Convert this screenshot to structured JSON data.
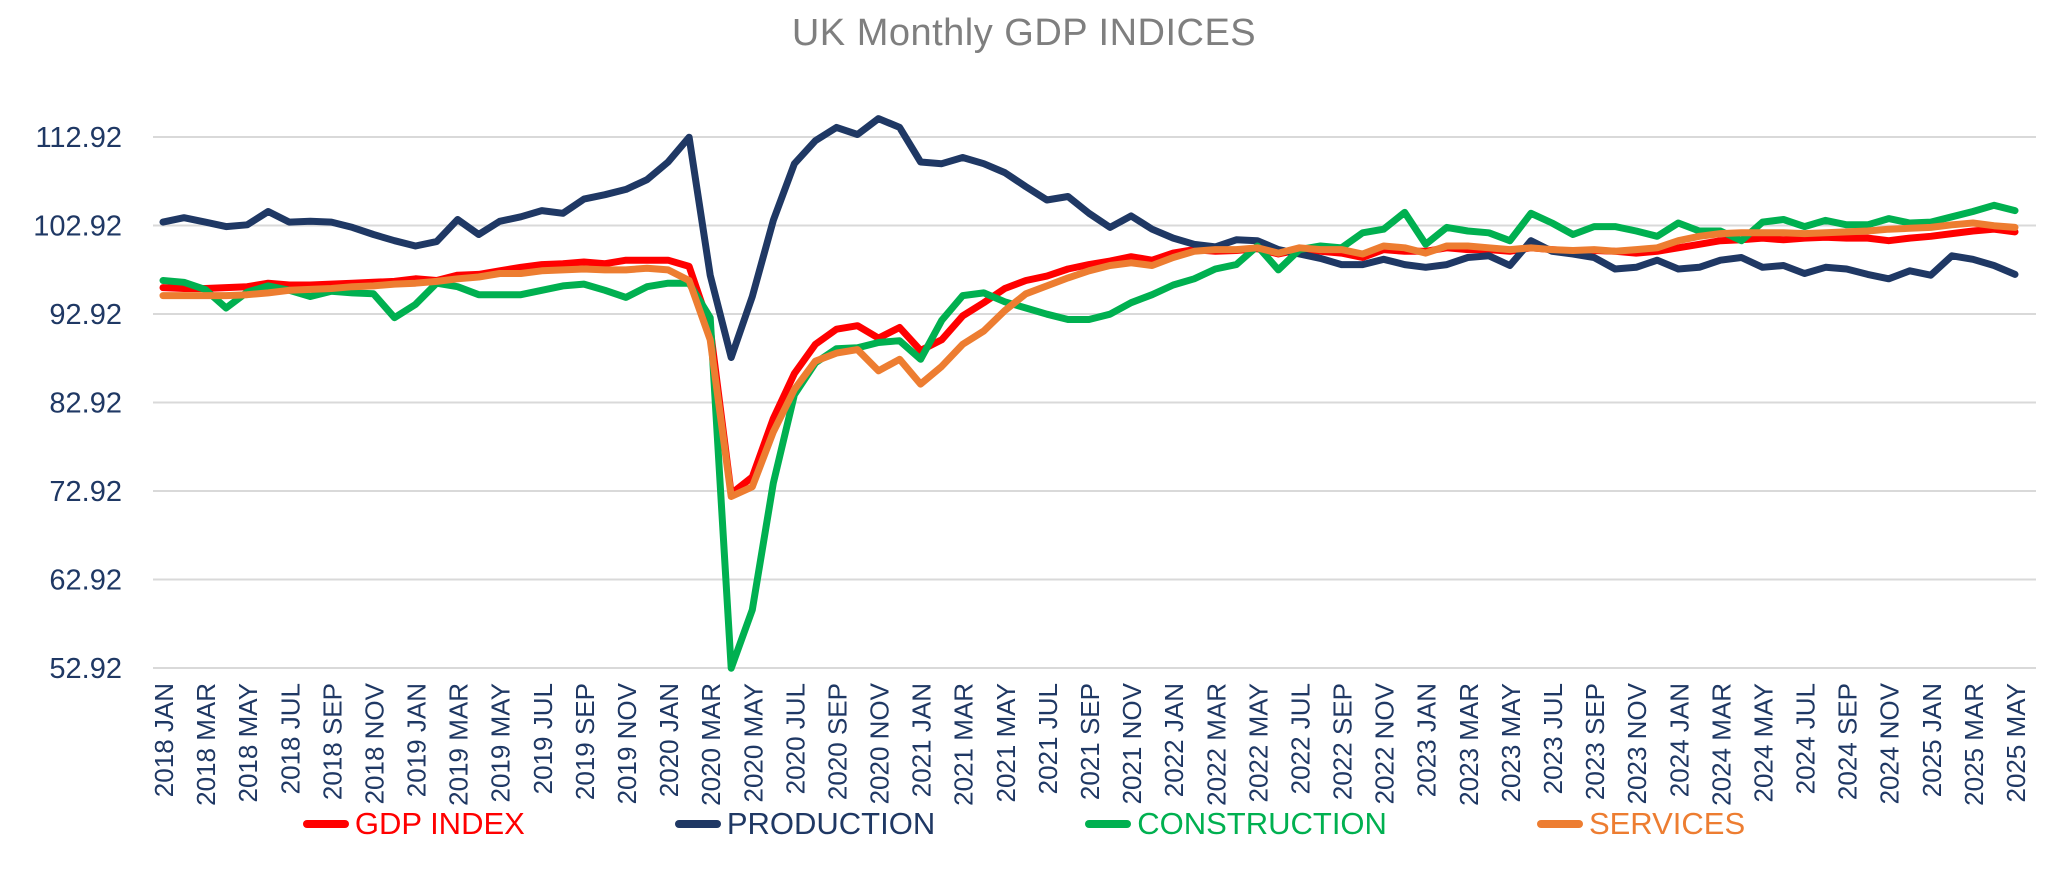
{
  "title": "UK Monthly GDP INDICES",
  "colors": {
    "title_text": "#7f7f7f",
    "axis_text": "#1f3864",
    "gridline": "#d9d9d9",
    "background": "#ffffff",
    "gdp_index": "#ff0000",
    "production": "#1f3864",
    "construction": "#00b050",
    "services": "#ed7d31"
  },
  "legend": {
    "position": "bottom",
    "items": [
      "GDP INDEX",
      "PRODUCTION",
      "CONSTRUCTION",
      "SERVICES"
    ]
  },
  "chart_data": {
    "type": "line",
    "title": "UK Monthly GDP INDICES",
    "xlabel": "",
    "ylabel": "",
    "ylim": [
      52.92,
      112.92
    ],
    "y_ticks": [
      112.92,
      102.92,
      92.92,
      82.92,
      72.92,
      62.92,
      52.92
    ],
    "grid": "horizontal",
    "legend_position": "bottom",
    "x_tick_step": 2,
    "x": [
      "2018 JAN",
      "2018 FEB",
      "2018 MAR",
      "2018 APR",
      "2018 MAY",
      "2018 JUN",
      "2018 JUL",
      "2018 AUG",
      "2018 SEP",
      "2018 OCT",
      "2018 NOV",
      "2018 DEC",
      "2019 JAN",
      "2019 FEB",
      "2019 MAR",
      "2019 APR",
      "2019 MAY",
      "2019 JUN",
      "2019 JUL",
      "2019 AUG",
      "2019 SEP",
      "2019 OCT",
      "2019 NOV",
      "2019 DEC",
      "2020 JAN",
      "2020 FEB",
      "2020 MAR",
      "2020 APR",
      "2020 MAY",
      "2020 JUN",
      "2020 JUL",
      "2020 AUG",
      "2020 SEP",
      "2020 OCT",
      "2020 NOV",
      "2020 DEC",
      "2021 JAN",
      "2021 FEB",
      "2021 MAR",
      "2021 APR",
      "2021 MAY",
      "2021 JUN",
      "2021 JUL",
      "2021 AUG",
      "2021 SEP",
      "2021 OCT",
      "2021 NOV",
      "2021 DEC",
      "2022 JAN",
      "2022 FEB",
      "2022 MAR",
      "2022 APR",
      "2022 MAY",
      "2022 JUN",
      "2022 JUL",
      "2022 AUG",
      "2022 SEP",
      "2022 OCT",
      "2022 NOV",
      "2022 DEC",
      "2023 JAN",
      "2023 FEB",
      "2023 MAR",
      "2023 APR",
      "2023 MAY",
      "2023 JUN",
      "2023 JUL",
      "2023 AUG",
      "2023 SEP",
      "2023 OCT",
      "2023 NOV",
      "2023 DEC",
      "2024 JAN",
      "2024 FEB",
      "2024 MAR",
      "2024 APR",
      "2024 MAY",
      "2024 JUN",
      "2024 JUL",
      "2024 AUG",
      "2024 SEP",
      "2024 OCT",
      "2024 NOV",
      "2024 DEC",
      "2025 JAN",
      "2025 FEB",
      "2025 MAR",
      "2025 APR",
      "2025 MAY"
    ],
    "series": [
      {
        "name": "GDP INDEX",
        "color": "#ff0000",
        "values": [
          95.9,
          95.8,
          95.8,
          95.9,
          96.0,
          96.4,
          96.2,
          96.2,
          96.3,
          96.4,
          96.5,
          96.6,
          96.9,
          96.7,
          97.3,
          97.4,
          97.8,
          98.2,
          98.5,
          98.6,
          98.8,
          98.6,
          99.0,
          99.0,
          99.0,
          98.3,
          91.3,
          72.6,
          74.5,
          81.1,
          86.2,
          89.5,
          91.2,
          91.6,
          90.2,
          91.4,
          88.8,
          90.0,
          92.7,
          94.2,
          95.8,
          96.7,
          97.2,
          98.0,
          98.5,
          98.9,
          99.4,
          99.0,
          99.8,
          100.2,
          100.0,
          100.1,
          100.3,
          99.7,
          100.2,
          100.0,
          99.8,
          99.3,
          100.2,
          100.0,
          100.0,
          100.4,
          100.2,
          100.2,
          100.0,
          100.4,
          100.2,
          100.0,
          100.1,
          100.0,
          99.8,
          100.0,
          100.4,
          100.8,
          101.2,
          101.3,
          101.5,
          101.3,
          101.5,
          101.6,
          101.5,
          101.5,
          101.2,
          101.5,
          101.7,
          102.0,
          102.3,
          102.5,
          102.2
        ]
      },
      {
        "name": "PRODUCTION",
        "color": "#1f3864",
        "values": [
          103.3,
          103.8,
          103.3,
          102.8,
          103.0,
          104.5,
          103.3,
          103.4,
          103.3,
          102.7,
          101.9,
          101.2,
          100.6,
          101.1,
          103.6,
          101.9,
          103.4,
          103.9,
          104.6,
          104.3,
          105.9,
          106.4,
          107.0,
          108.1,
          110.1,
          112.9,
          97.3,
          88.0,
          94.9,
          103.5,
          109.9,
          112.5,
          114.0,
          113.2,
          115.0,
          114.0,
          110.1,
          109.9,
          110.6,
          109.9,
          108.9,
          107.3,
          105.8,
          106.2,
          104.3,
          102.7,
          104.0,
          102.5,
          101.5,
          100.8,
          100.5,
          101.3,
          101.2,
          100.2,
          99.7,
          99.2,
          98.5,
          98.5,
          99.1,
          98.5,
          98.2,
          98.5,
          99.3,
          99.5,
          98.4,
          101.2,
          100.0,
          99.7,
          99.3,
          98.0,
          98.2,
          99.0,
          98.0,
          98.2,
          99.0,
          99.3,
          98.2,
          98.4,
          97.5,
          98.2,
          98.0,
          97.4,
          96.9,
          97.8,
          97.3,
          99.5,
          99.1,
          98.4,
          97.4
        ]
      },
      {
        "name": "CONSTRUCTION",
        "color": "#00b050",
        "values": [
          96.7,
          96.5,
          95.7,
          93.6,
          95.4,
          96.1,
          95.6,
          94.9,
          95.5,
          95.3,
          95.2,
          92.5,
          94.0,
          96.4,
          96.0,
          95.1,
          95.1,
          95.1,
          95.6,
          96.1,
          96.3,
          95.6,
          94.8,
          96.0,
          96.4,
          96.4,
          92.5,
          52.9,
          59.5,
          73.8,
          83.8,
          87.4,
          89.0,
          89.1,
          89.7,
          89.9,
          87.8,
          92.2,
          95.0,
          95.3,
          94.3,
          93.6,
          92.9,
          92.3,
          92.3,
          92.9,
          94.2,
          95.1,
          96.2,
          96.9,
          98.0,
          98.5,
          100.6,
          97.9,
          100.2,
          100.6,
          100.4,
          102.1,
          102.5,
          104.4,
          100.8,
          102.7,
          102.3,
          102.1,
          101.2,
          104.3,
          103.2,
          101.9,
          102.8,
          102.8,
          102.3,
          101.7,
          103.2,
          102.3,
          102.3,
          101.2,
          103.3,
          103.6,
          102.8,
          103.5,
          103.0,
          103.0,
          103.7,
          103.2,
          103.3,
          103.9,
          104.5,
          105.2,
          104.6
        ]
      },
      {
        "name": "SERVICES",
        "color": "#ed7d31",
        "values": [
          95.0,
          95.0,
          95.0,
          95.0,
          95.1,
          95.3,
          95.6,
          95.7,
          95.8,
          96.0,
          96.1,
          96.3,
          96.4,
          96.6,
          96.9,
          97.1,
          97.5,
          97.5,
          97.8,
          97.9,
          98.0,
          97.9,
          97.9,
          98.1,
          97.9,
          96.7,
          90.0,
          72.3,
          73.4,
          79.6,
          84.4,
          87.6,
          88.5,
          88.9,
          86.5,
          87.8,
          85.0,
          87.0,
          89.5,
          91.0,
          93.3,
          95.2,
          96.1,
          97.0,
          97.8,
          98.4,
          98.7,
          98.4,
          99.3,
          100.0,
          100.2,
          100.2,
          100.4,
          99.8,
          100.4,
          100.2,
          100.2,
          99.7,
          100.6,
          100.4,
          99.8,
          100.6,
          100.6,
          100.4,
          100.2,
          100.4,
          100.2,
          100.1,
          100.2,
          100.0,
          100.2,
          100.4,
          101.2,
          101.7,
          102.0,
          102.1,
          102.1,
          102.1,
          102.0,
          102.1,
          102.2,
          102.3,
          102.5,
          102.6,
          102.7,
          103.0,
          103.2,
          102.9,
          102.7
        ]
      }
    ]
  }
}
